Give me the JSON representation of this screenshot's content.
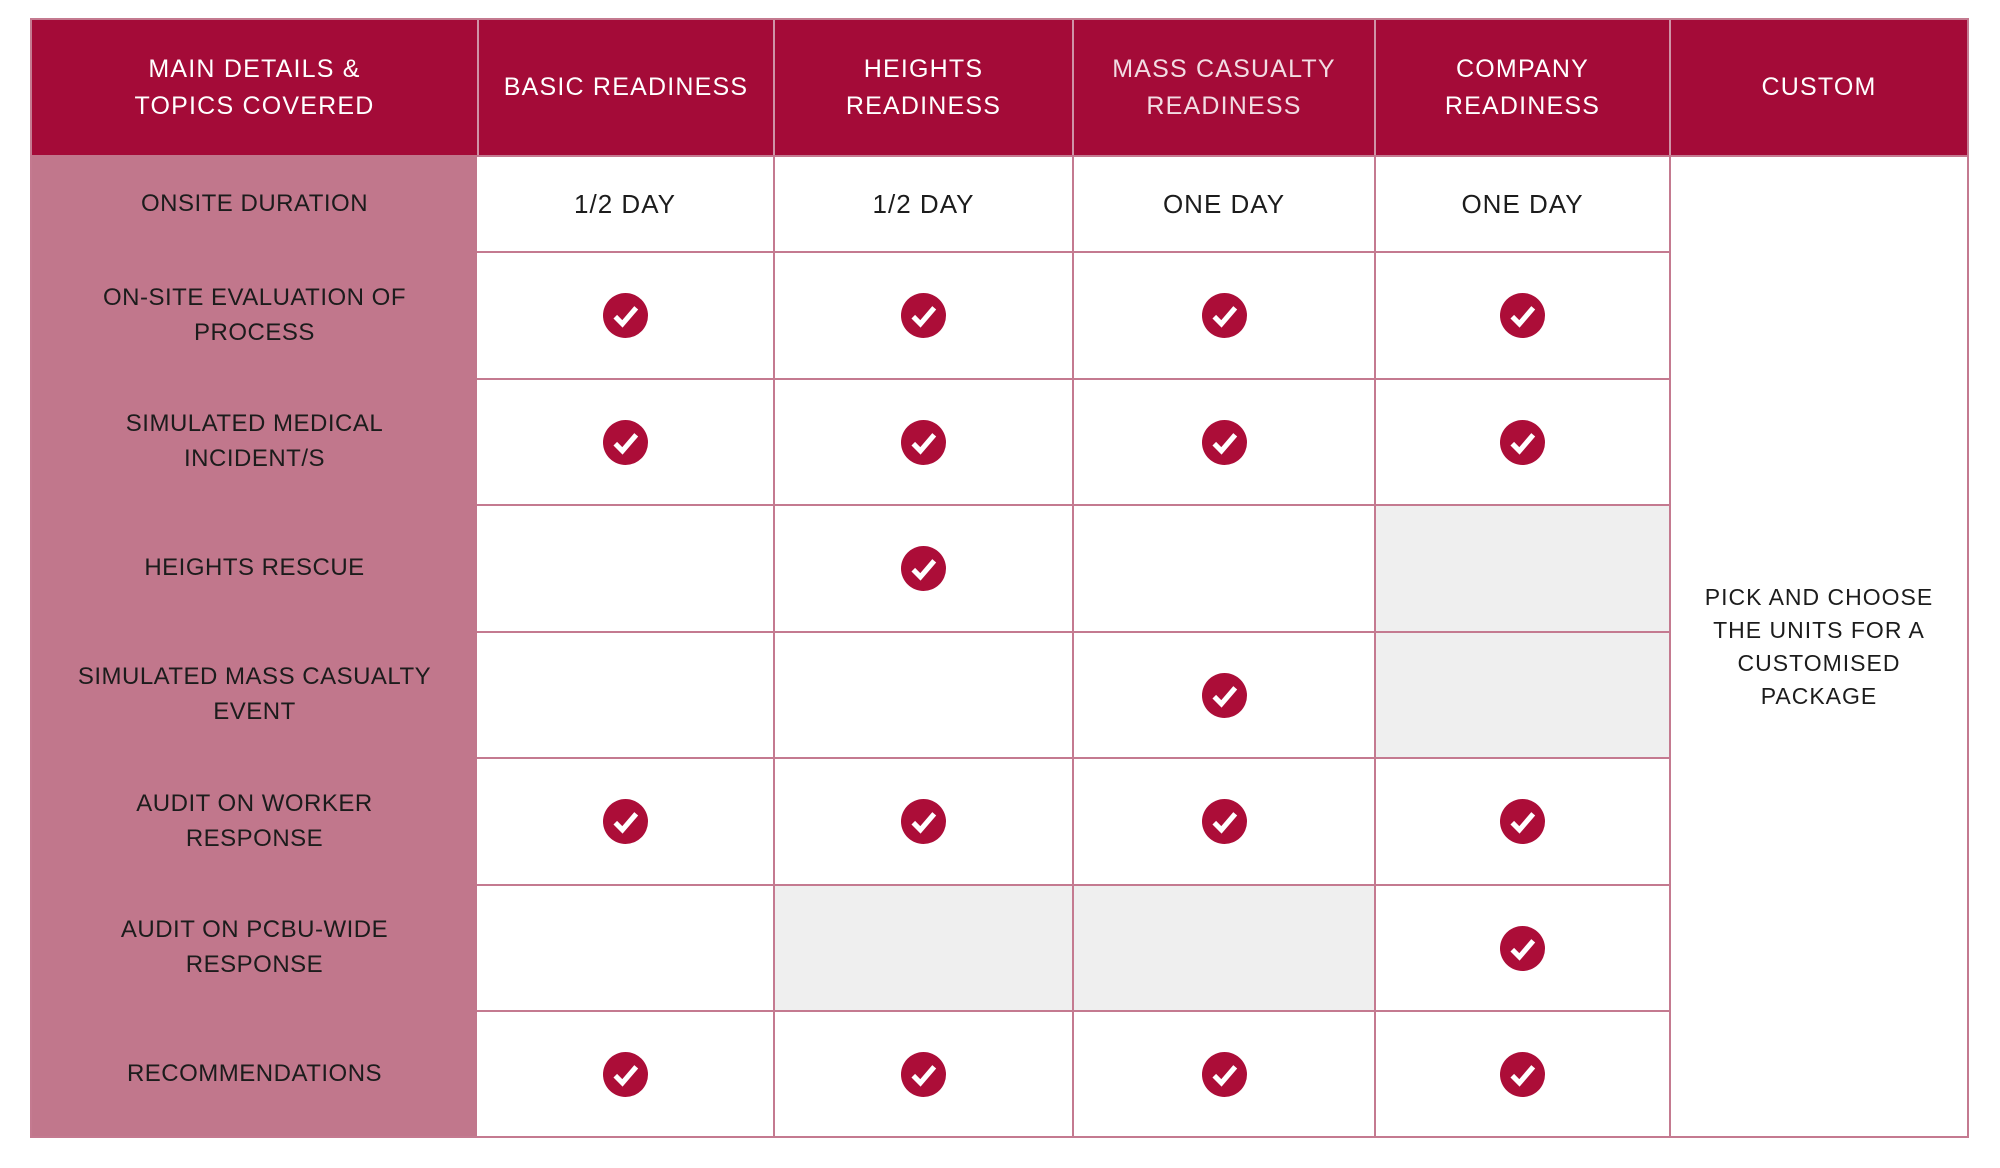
{
  "table": {
    "columns": [
      {
        "id": "topics",
        "label": "MAIN DETAILS &\nTOPICS COVERED"
      },
      {
        "id": "basic-readiness",
        "label": "BASIC READINESS"
      },
      {
        "id": "heights-readiness",
        "label": "HEIGHTS\nREADINESS"
      },
      {
        "id": "mass-casualty-readiness",
        "label": "MASS CASUALTY\nREADINESS"
      },
      {
        "id": "company-readiness",
        "label": "COMPANY\nREADINESS"
      },
      {
        "id": "custom",
        "label": "CUSTOM"
      }
    ],
    "rows": [
      {
        "label": "ONSITE DURATION",
        "cells": [
          {
            "type": "text",
            "value": "1/2 DAY"
          },
          {
            "type": "text",
            "value": "1/2 DAY"
          },
          {
            "type": "text",
            "value": "ONE DAY"
          },
          {
            "type": "text",
            "value": "ONE DAY"
          }
        ]
      },
      {
        "label": "ON-SITE EVALUATION OF\nPROCESS",
        "cells": [
          {
            "type": "check"
          },
          {
            "type": "check"
          },
          {
            "type": "check"
          },
          {
            "type": "check"
          }
        ]
      },
      {
        "label": "SIMULATED MEDICAL\nINCIDENT/S",
        "cells": [
          {
            "type": "check"
          },
          {
            "type": "check"
          },
          {
            "type": "check"
          },
          {
            "type": "check"
          }
        ]
      },
      {
        "label": "HEIGHTS RESCUE",
        "cells": [
          {
            "type": "empty"
          },
          {
            "type": "check"
          },
          {
            "type": "empty"
          },
          {
            "type": "na"
          }
        ]
      },
      {
        "label": "SIMULATED MASS CASUALTY\nEVENT",
        "cells": [
          {
            "type": "empty"
          },
          {
            "type": "empty"
          },
          {
            "type": "check"
          },
          {
            "type": "na"
          }
        ]
      },
      {
        "label": "AUDIT ON WORKER\nRESPONSE",
        "cells": [
          {
            "type": "check"
          },
          {
            "type": "check"
          },
          {
            "type": "check"
          },
          {
            "type": "check"
          }
        ]
      },
      {
        "label": "AUDIT ON PCBU-WIDE\nRESPONSE",
        "cells": [
          {
            "type": "empty"
          },
          {
            "type": "na"
          },
          {
            "type": "na"
          },
          {
            "type": "check"
          }
        ]
      },
      {
        "label": "RECOMMENDATIONS",
        "cells": [
          {
            "type": "check"
          },
          {
            "type": "check"
          },
          {
            "type": "check"
          },
          {
            "type": "check"
          }
        ]
      }
    ],
    "custom_note": "PICK AND CHOOSE\nTHE UNITS FOR A\nCUSTOMISED\nPACKAGE"
  },
  "chart_data": {
    "type": "table",
    "title": "Readiness packages comparison",
    "columns": [
      "MAIN DETAILS & TOPICS COVERED",
      "BASIC READINESS",
      "HEIGHTS READINESS",
      "MASS CASUALTY READINESS",
      "COMPANY READINESS",
      "CUSTOM"
    ],
    "rows": [
      [
        "ONSITE DURATION",
        "1/2 DAY",
        "1/2 DAY",
        "ONE DAY",
        "ONE DAY",
        ""
      ],
      [
        "ON-SITE EVALUATION OF PROCESS",
        "check",
        "check",
        "check",
        "check",
        ""
      ],
      [
        "SIMULATED MEDICAL INCIDENT/S",
        "check",
        "check",
        "check",
        "check",
        ""
      ],
      [
        "HEIGHTS RESCUE",
        "",
        "check",
        "",
        "n/a-gray",
        ""
      ],
      [
        "SIMULATED MASS CASUALTY EVENT",
        "",
        "",
        "check",
        "n/a-gray",
        ""
      ],
      [
        "AUDIT ON WORKER RESPONSE",
        "check",
        "check",
        "check",
        "check",
        ""
      ],
      [
        "AUDIT ON PCBU-WIDE RESPONSE",
        "",
        "n/a-gray",
        "n/a-gray",
        "check",
        ""
      ],
      [
        "RECOMMENDATIONS",
        "check",
        "check",
        "check",
        "check",
        ""
      ]
    ],
    "merged_custom_cell_note": "PICK AND CHOOSE THE UNITS FOR A CUSTOMISED PACKAGE",
    "legend_position": "none",
    "grid": true
  },
  "colors": {
    "header_red": "#A40B38",
    "check_red": "#AC0D38",
    "label_mauve": "#C1778C",
    "grid_rose": "#C47A90",
    "header_divider_rose": "#CF93A6",
    "na_gray": "#EFEFEF",
    "text_dark": "#1C1C1C",
    "header_text": "#FFFFFF"
  },
  "icons": {
    "check": "check-icon"
  }
}
